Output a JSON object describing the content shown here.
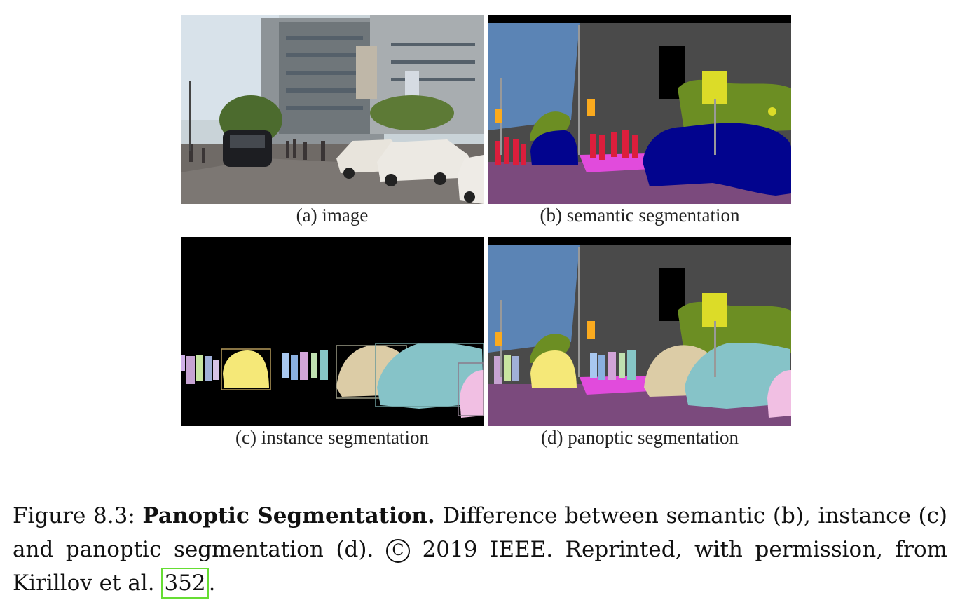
{
  "figure": {
    "panels": [
      {
        "id": "a",
        "label": "(a) image"
      },
      {
        "id": "b",
        "label": "(b) semantic segmentation"
      },
      {
        "id": "c",
        "label": "(c) instance segmentation"
      },
      {
        "id": "d",
        "label": "(d) panoptic segmentation"
      }
    ],
    "colors": {
      "sky": "#5b84b5",
      "building": "#4a4a4a",
      "vegetation": "#6c8e23",
      "road": "#7b4a7d",
      "sidewalk": "#e14bdc",
      "car": "#02048e",
      "person": "#dc1e3c",
      "traffic_sign": "#dcdc00",
      "pole": "#999999"
    }
  },
  "caption": {
    "prefix": "Figure 8.3:",
    "title": "Panoptic Segmentation.",
    "text_1": "Difference between semantic (b), instance (c) and panoptic segmentation (d).",
    "copyright_symbol": "C",
    "text_2": "2019 IEEE. Reprinted, with permission, from Kirillov et al.",
    "citation": "352",
    "end": "."
  }
}
